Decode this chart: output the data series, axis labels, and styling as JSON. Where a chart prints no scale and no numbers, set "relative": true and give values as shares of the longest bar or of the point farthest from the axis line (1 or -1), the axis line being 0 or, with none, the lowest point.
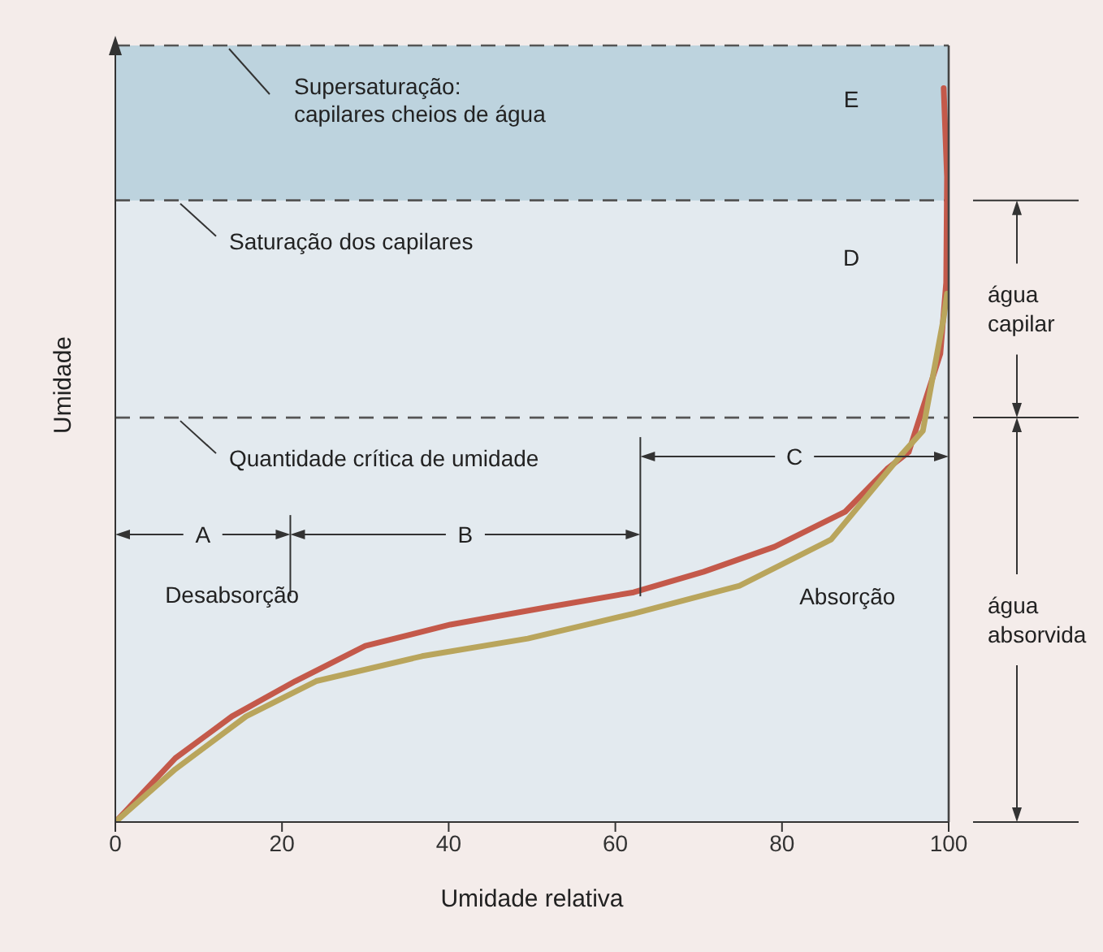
{
  "chart_data": {
    "type": "line",
    "relative": true,
    "xlabel": "Umidade relativa",
    "ylabel": "Umidade",
    "xlim": [
      0,
      100
    ],
    "xticks": [
      0,
      20,
      40,
      60,
      80,
      100
    ],
    "series": [
      {
        "name": "Desabsorção",
        "color": "#c4594a",
        "x": [
          0,
          7.2,
          14,
          21.6,
          30,
          40.2,
          52,
          62.2,
          70.6,
          79.1,
          87.6,
          92.6,
          95.2,
          99,
          99.7,
          99.8,
          99.4
        ],
        "values": [
          0,
          0.087,
          0.144,
          0.192,
          0.24,
          0.269,
          0.293,
          0.313,
          0.341,
          0.375,
          0.423,
          0.481,
          0.504,
          0.638,
          0.735,
          0.879,
          1
        ]
      },
      {
        "name": "Absorção",
        "color": "#b9a55c",
        "x": [
          0,
          7.2,
          15.7,
          24.1,
          36.8,
          49.5,
          62.2,
          74.9,
          85.9,
          94.3,
          96.9,
          99.4,
          99.8
        ],
        "values": [
          0,
          0.072,
          0.144,
          0.192,
          0.226,
          0.25,
          0.284,
          0.322,
          0.385,
          0.5,
          0.533,
          0.687,
          0.72
        ]
      }
    ],
    "ref_lines": [
      {
        "axis": "y",
        "value": 0.847,
        "label": "Saturação dos capilares",
        "line_style": "dashed"
      },
      {
        "axis": "y",
        "value": 0.551,
        "label": "Quantidade crítica de umidade",
        "line_style": "dashed"
      },
      {
        "axis": "x",
        "value": 21
      },
      {
        "axis": "x",
        "value": 63
      }
    ],
    "bands": [
      {
        "axis": "y",
        "from": 0.847,
        "to": 1.058,
        "label": "Supersaturação: capilares cheios de água",
        "color": "#bdd3de"
      }
    ],
    "annotations": [
      "A",
      "B",
      "C",
      "água capilar",
      "água absorvida",
      "E",
      "D"
    ]
  }
}
